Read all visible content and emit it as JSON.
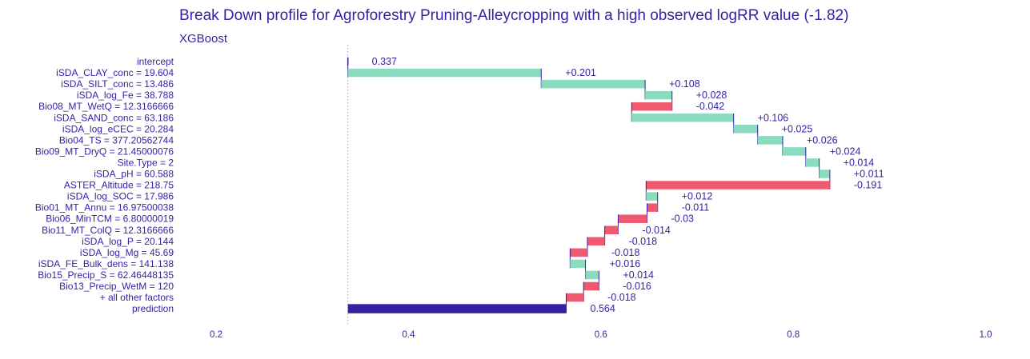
{
  "chart_data": {
    "type": "waterfall",
    "title": "Break Down profile for Agroforestry Pruning-Alleycropping with a high observed logRR value (-1.82)",
    "subtitle": "XGBoost",
    "xlim": [
      0.15,
      1.0
    ],
    "x_ticks": [
      "0.2",
      "0.4",
      "0.6",
      "0.8",
      "1.0"
    ],
    "x_tick_values": [
      0.2,
      0.4,
      0.6,
      0.8,
      1.0
    ],
    "intercept_value": 0.337,
    "colors": {
      "positive": "#8bdcbe",
      "negative": "#f05a71",
      "prediction": "#371ea3",
      "text": "#371ea3",
      "connector": "#371ea3"
    },
    "rows": [
      {
        "label": "intercept",
        "type": "intercept",
        "start": 0.337,
        "end": 0.337,
        "value_label": "0.337"
      },
      {
        "label": "iSDA_CLAY_conc = 19.604",
        "type": "positive",
        "start": 0.337,
        "end": 0.538,
        "value_label": "+0.201"
      },
      {
        "label": "iSDA_SILT_conc = 13.486",
        "type": "positive",
        "start": 0.538,
        "end": 0.646,
        "value_label": "+0.108"
      },
      {
        "label": "iSDA_log_Fe = 38.788",
        "type": "positive",
        "start": 0.646,
        "end": 0.674,
        "value_label": "+0.028"
      },
      {
        "label": "Bio08_MT_WetQ = 12.3166666",
        "type": "negative",
        "start": 0.674,
        "end": 0.632,
        "value_label": "-0.042"
      },
      {
        "label": "iSDA_SAND_conc = 63.186",
        "type": "positive",
        "start": 0.632,
        "end": 0.738,
        "value_label": "+0.106"
      },
      {
        "label": "iSDA_log_eCEC = 20.284",
        "type": "positive",
        "start": 0.738,
        "end": 0.763,
        "value_label": "+0.025"
      },
      {
        "label": "Bio04_TS = 377.20562744",
        "type": "positive",
        "start": 0.763,
        "end": 0.789,
        "value_label": "+0.026"
      },
      {
        "label": "Bio09_MT_DryQ = 21.45000076",
        "type": "positive",
        "start": 0.789,
        "end": 0.813,
        "value_label": "+0.024"
      },
      {
        "label": "Site.Type = 2",
        "type": "positive",
        "start": 0.813,
        "end": 0.827,
        "value_label": "+0.014"
      },
      {
        "label": "iSDA_pH = 60.588",
        "type": "positive",
        "start": 0.827,
        "end": 0.838,
        "value_label": "+0.011"
      },
      {
        "label": "ASTER_Altitude = 218.75",
        "type": "negative",
        "start": 0.838,
        "end": 0.647,
        "value_label": "-0.191"
      },
      {
        "label": "iSDA_log_SOC = 17.986",
        "type": "positive",
        "start": 0.647,
        "end": 0.659,
        "value_label": "+0.012"
      },
      {
        "label": "Bio01_MT_Annu = 16.97500038",
        "type": "negative",
        "start": 0.659,
        "end": 0.648,
        "value_label": "-0.011"
      },
      {
        "label": "Bio06_MinTCM = 6.80000019",
        "type": "negative",
        "start": 0.648,
        "end": 0.618,
        "value_label": "-0.03"
      },
      {
        "label": "Bio11_MT_ColQ = 12.3166666",
        "type": "negative",
        "start": 0.618,
        "end": 0.604,
        "value_label": "-0.014"
      },
      {
        "label": "iSDA_log_P = 20.144",
        "type": "negative",
        "start": 0.604,
        "end": 0.586,
        "value_label": "-0.018"
      },
      {
        "label": "iSDA_log_Mg = 45.69",
        "type": "negative",
        "start": 0.586,
        "end": 0.568,
        "value_label": "-0.018"
      },
      {
        "label": "iSDA_FE_Bulk_dens = 141.138",
        "type": "positive",
        "start": 0.568,
        "end": 0.584,
        "value_label": "+0.016"
      },
      {
        "label": "Bio15_Precip_S = 62.46448135",
        "type": "positive",
        "start": 0.584,
        "end": 0.598,
        "value_label": "+0.014"
      },
      {
        "label": "Bio13_Precip_WetM = 120",
        "type": "negative",
        "start": 0.598,
        "end": 0.582,
        "value_label": "-0.016"
      },
      {
        "label": "+ all other factors",
        "type": "negative",
        "start": 0.582,
        "end": 0.564,
        "value_label": "-0.018"
      },
      {
        "label": "prediction",
        "type": "prediction",
        "start": 0.337,
        "end": 0.564,
        "value_label": "0.564"
      }
    ]
  }
}
